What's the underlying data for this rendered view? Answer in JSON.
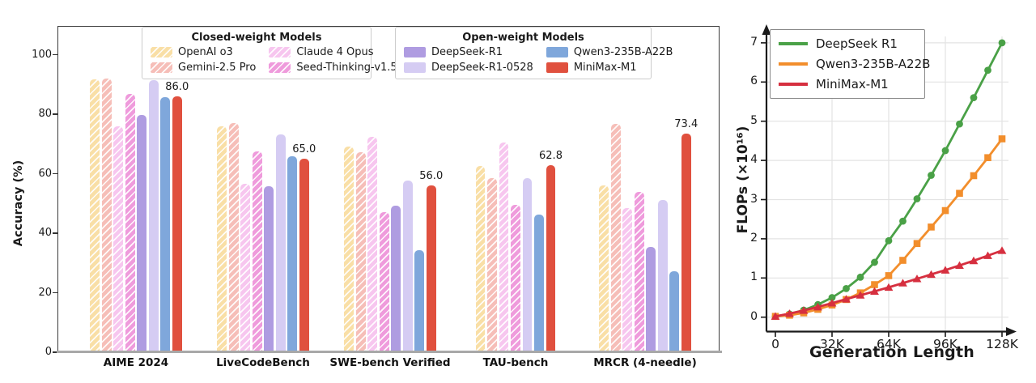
{
  "chart_data": [
    {
      "type": "bar",
      "title": "",
      "ylabel": "Accuracy (%)",
      "yticks": [
        0,
        20,
        40,
        60,
        80,
        100
      ],
      "ylim": [
        0,
        109
      ],
      "grid": false,
      "categories": [
        "AIME 2024",
        "LiveCodeBench",
        "SWE-bench Verified",
        "TAU-bench",
        "MRCR (4-needle)"
      ],
      "legends": [
        {
          "title": "Closed-weight Models",
          "items": [
            "OpenAI o3",
            "Gemini-2.5 Pro",
            "Claude 4 Opus",
            "Seed-Thinking-v1.5"
          ]
        },
        {
          "title": "Open-weight Models",
          "items": [
            "DeepSeek-R1",
            "DeepSeek-R1-0528",
            "Qwen3-235B-A22B",
            "MiniMax-M1"
          ]
        }
      ],
      "annotated_series": "MiniMax-M1",
      "annotations": [
        "86.0",
        "65.0",
        "56.0",
        "62.8",
        "73.4"
      ],
      "series": [
        {
          "name": "OpenAI o3",
          "color": "#F9DFA6",
          "hatch": true,
          "values": [
            91.6,
            75.8,
            69.1,
            62.5,
            56.0
          ]
        },
        {
          "name": "Gemini-2.5 Pro",
          "color": "#F6BEB8",
          "hatch": true,
          "values": [
            92.0,
            77.1,
            67.2,
            58.5,
            76.8
          ]
        },
        {
          "name": "Claude 4 Opus",
          "color": "#F7C6EF",
          "hatch": true,
          "values": [
            76.0,
            56.6,
            72.5,
            70.5,
            48.5
          ]
        },
        {
          "name": "Seed-Thinking-v1.5",
          "color": "#EF9BDC",
          "hatch": true,
          "values": [
            86.7,
            67.5,
            47.0,
            49.5,
            54.0
          ]
        },
        {
          "name": "DeepSeek-R1",
          "color": "#AF9CE1",
          "hatch": false,
          "values": [
            79.8,
            55.9,
            49.2,
            null,
            35.5
          ]
        },
        {
          "name": "DeepSeek-R1-0528",
          "color": "#D5CCF3",
          "hatch": false,
          "values": [
            91.4,
            73.1,
            57.6,
            58.5,
            51.2
          ]
        },
        {
          "name": "Qwen3-235B-A22B",
          "color": "#7FA7DB",
          "hatch": false,
          "values": [
            85.7,
            65.9,
            34.4,
            46.2,
            27.3
          ]
        },
        {
          "name": "MiniMax-M1",
          "color": "#E0503E",
          "hatch": false,
          "values": [
            86.0,
            65.0,
            56.0,
            62.8,
            73.4
          ]
        }
      ]
    },
    {
      "type": "line",
      "xlabel": "Generation Length",
      "ylabel": "FLOPs (×10¹⁶)",
      "x_tick_labels": [
        "0",
        "32K",
        "64K",
        "96K",
        "128K"
      ],
      "x_tick_k": [
        0,
        32,
        64,
        96,
        128
      ],
      "yticks": [
        0,
        1,
        2,
        3,
        4,
        5,
        6,
        7
      ],
      "xlim_k": [
        0,
        128
      ],
      "ylim": [
        0,
        7.3
      ],
      "grid": true,
      "legend_position": "upper left",
      "x_k": [
        0,
        8,
        16,
        24,
        32,
        40,
        48,
        56,
        64,
        72,
        80,
        88,
        96,
        104,
        112,
        120,
        128
      ],
      "series": [
        {
          "name": "DeepSeek R1",
          "color": "#4AA147",
          "marker": "circle",
          "values": [
            0.02,
            0.08,
            0.18,
            0.32,
            0.5,
            0.73,
            1.02,
            1.4,
            1.95,
            2.45,
            3.02,
            3.62,
            4.25,
            4.93,
            5.6,
            6.3,
            7.0
          ]
        },
        {
          "name": "Qwen3-235B-A22B",
          "color": "#F28E2C",
          "marker": "square",
          "values": [
            0.02,
            0.05,
            0.11,
            0.2,
            0.31,
            0.45,
            0.62,
            0.83,
            1.06,
            1.45,
            1.88,
            2.3,
            2.72,
            3.16,
            3.61,
            4.07,
            4.55
          ]
        },
        {
          "name": "MiniMax-M1",
          "color": "#D62F3F",
          "marker": "triangle",
          "values": [
            0.02,
            0.09,
            0.17,
            0.26,
            0.36,
            0.46,
            0.56,
            0.66,
            0.76,
            0.87,
            0.98,
            1.09,
            1.2,
            1.32,
            1.44,
            1.57,
            1.7
          ]
        }
      ]
    }
  ]
}
